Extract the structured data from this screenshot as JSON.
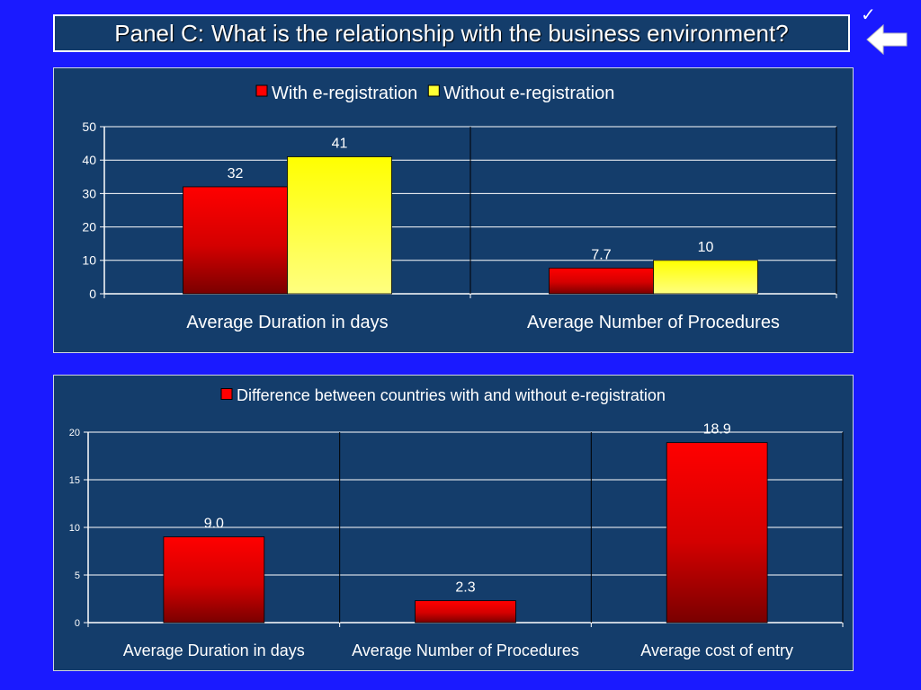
{
  "header": {
    "title_prefix": "Panel C: ",
    "title_main": "What is the relationship with the business environment?"
  },
  "icons": {
    "checkmark": "checkmark-icon",
    "back": "back-arrow-icon"
  },
  "colors": {
    "background": "#1a1aff",
    "panel": "#143d6b",
    "red": "#ff0000",
    "dark_red": "#8b0000",
    "yellow": "#ffff00"
  },
  "chart_data": [
    {
      "type": "bar",
      "categories": [
        "Average Duration in days",
        "Average Number of Procedures"
      ],
      "series": [
        {
          "name": "With e-registration",
          "values": [
            32,
            7.7
          ],
          "labels": [
            "32",
            "7.7"
          ],
          "color": "#ff0000"
        },
        {
          "name": "Without e-registration",
          "values": [
            41,
            10
          ],
          "labels": [
            "41",
            "10"
          ],
          "color": "#ffff00"
        }
      ],
      "ylim": [
        0,
        50
      ],
      "yticks": [
        0,
        10,
        20,
        30,
        40,
        50
      ],
      "legend": "top",
      "grid": true
    },
    {
      "type": "bar",
      "categories": [
        "Average Duration in days",
        "Average Number of Procedures",
        "Average cost of entry"
      ],
      "series": [
        {
          "name": "Difference between countries with and without e-registration",
          "values": [
            9.0,
            2.3,
            18.9
          ],
          "labels": [
            "9.0",
            "2.3",
            "18.9"
          ],
          "color": "#ff0000"
        }
      ],
      "ylim": [
        0,
        20
      ],
      "yticks": [
        0,
        5,
        10,
        15,
        20
      ],
      "legend": "top",
      "grid": true
    }
  ]
}
